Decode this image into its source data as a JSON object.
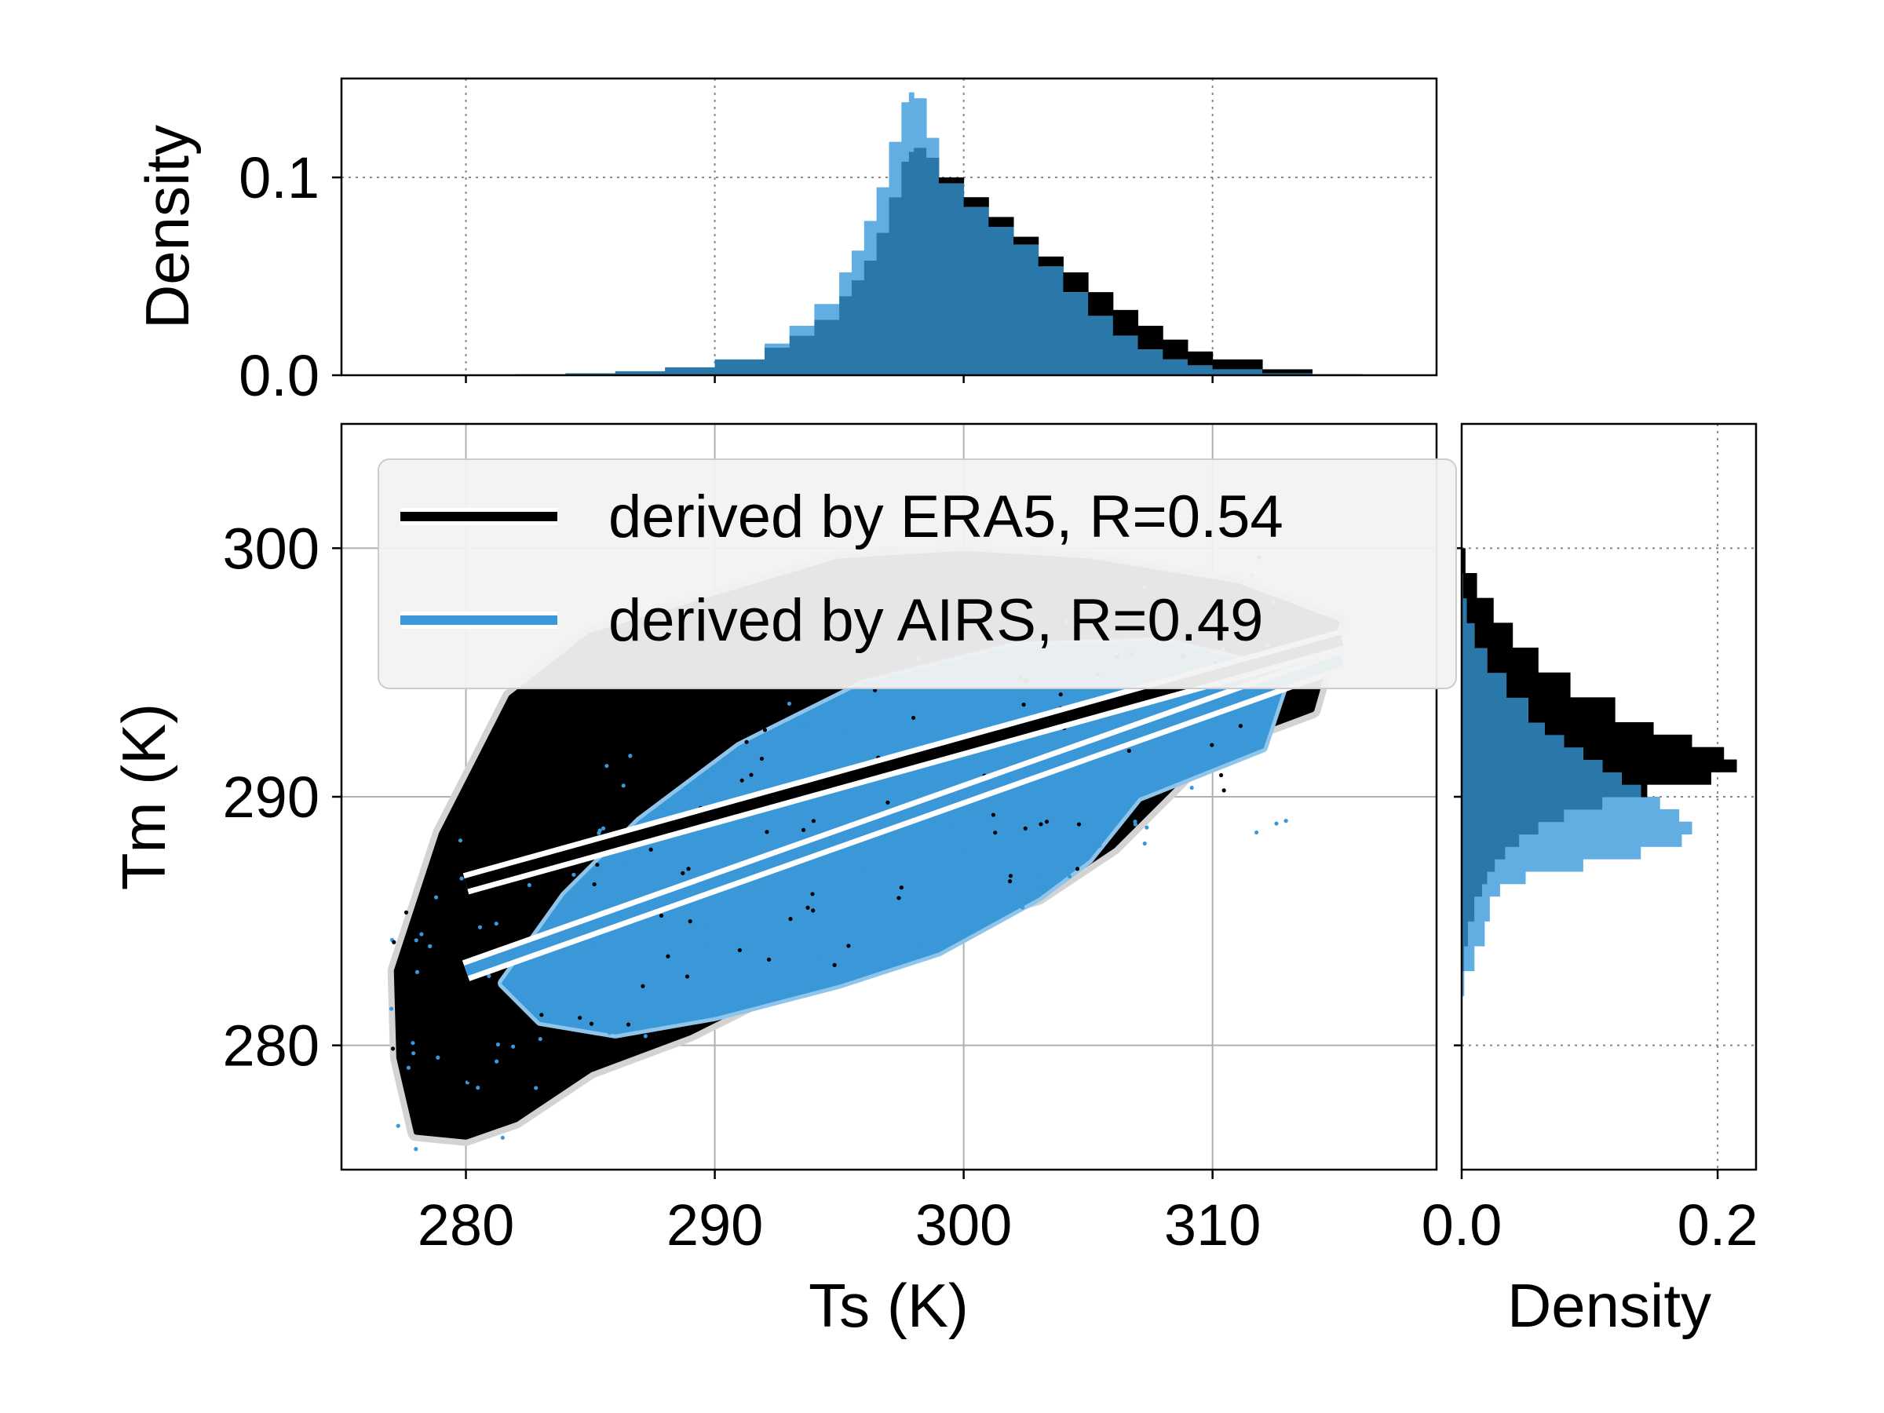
{
  "chart_data": [
    {
      "id": "scatter_main",
      "type": "scatter",
      "xlabel": "Ts (K)",
      "ylabel": "Tm (K)",
      "xlim": [
        275,
        319
      ],
      "ylim": [
        275,
        305
      ],
      "xticks": [
        280,
        290,
        300,
        310
      ],
      "yticks": [
        280,
        290,
        300
      ],
      "grid": "solid",
      "legend_position": "upper-left",
      "series": [
        {
          "name": "derived by ERA5, R=0.54",
          "color": "#000000",
          "cloud_color": "#000000",
          "halo_color": "#d3d3d3",
          "fit_line": {
            "x": [
              280,
              315.2
            ],
            "y": [
              286.5,
              296.3
            ]
          },
          "cloud_outline": [
            [
              277.2,
              283
            ],
            [
              279,
              288.5
            ],
            [
              281.8,
              294
            ],
            [
              285,
              296.5
            ],
            [
              290,
              298
            ],
            [
              295,
              299.5
            ],
            [
              300,
              299.8
            ],
            [
              305,
              299.5
            ],
            [
              311,
              298.5
            ],
            [
              315,
              297
            ],
            [
              314,
              293.5
            ],
            [
              310,
              292
            ],
            [
              306,
              288
            ],
            [
              303,
              286
            ],
            [
              298,
              284.5
            ],
            [
              294,
              283
            ],
            [
              289,
              280.5
            ],
            [
              285,
              279
            ],
            [
              282,
              277
            ],
            [
              280,
              276.3
            ],
            [
              278,
              276.5
            ],
            [
              277.3,
              279.5
            ]
          ]
        },
        {
          "name": "derived by AIRS, R=0.49",
          "color": "#3a98d8",
          "cloud_color": "#3a98d8",
          "fit_line": {
            "x": [
              280,
              315.2
            ],
            "y": [
              283,
              295.5
            ]
          },
          "cloud_outline": [
            [
              281.5,
              282.5
            ],
            [
              284,
              286
            ],
            [
              287,
              289
            ],
            [
              291,
              292
            ],
            [
              296,
              294.5
            ],
            [
              302,
              296
            ],
            [
              308,
              296.2
            ],
            [
              313,
              295
            ],
            [
              312,
              292
            ],
            [
              307,
              290
            ],
            [
              305,
              287.5
            ],
            [
              303,
              286
            ],
            [
              299,
              283.8
            ],
            [
              295,
              282.5
            ],
            [
              290,
              281.2
            ],
            [
              286,
              280.5
            ],
            [
              283,
              281
            ]
          ]
        }
      ]
    },
    {
      "id": "histogram_top",
      "type": "bar",
      "ylabel": "Density",
      "xlim": [
        275,
        319
      ],
      "ylim": [
        0,
        0.15
      ],
      "yticks": [
        0.0,
        0.1
      ],
      "ytick_labels": [
        "0.0",
        "0.1"
      ],
      "grid": "dotted",
      "x": [
        280,
        282,
        284,
        286,
        288,
        290,
        292,
        293,
        294,
        295,
        295.5,
        296,
        296.5,
        297,
        297.5,
        297.8,
        298,
        298.5,
        299,
        300,
        301,
        302,
        303,
        304,
        305,
        306,
        307,
        308,
        309,
        310,
        312,
        314
      ],
      "series": [
        {
          "name": "ERA5",
          "color": "#000000",
          "values": [
            0.0,
            0.0005,
            0.001,
            0.002,
            0.004,
            0.008,
            0.014,
            0.02,
            0.028,
            0.04,
            0.048,
            0.058,
            0.072,
            0.09,
            0.108,
            0.113,
            0.115,
            0.11,
            0.1,
            0.09,
            0.08,
            0.07,
            0.06,
            0.052,
            0.042,
            0.033,
            0.025,
            0.018,
            0.012,
            0.008,
            0.003,
            0.0005
          ]
        },
        {
          "name": "AIRS",
          "color": "#62aee3",
          "overlap_color": "#2a77aa",
          "values": [
            0.0,
            0.0005,
            0.001,
            0.002,
            0.004,
            0.008,
            0.016,
            0.025,
            0.036,
            0.052,
            0.063,
            0.078,
            0.095,
            0.118,
            0.138,
            0.143,
            0.14,
            0.12,
            0.097,
            0.085,
            0.075,
            0.066,
            0.055,
            0.042,
            0.03,
            0.02,
            0.013,
            0.008,
            0.005,
            0.003,
            0.001,
            0.0002
          ]
        }
      ]
    },
    {
      "id": "histogram_right",
      "type": "bar",
      "xlabel": "Density",
      "xlim": [
        0,
        0.23
      ],
      "xticks": [
        0.0,
        0.2
      ],
      "xtick_labels": [
        "0.0",
        "0.2"
      ],
      "ylim": [
        275,
        305
      ],
      "grid": "dotted",
      "y": [
        282,
        283,
        284,
        285,
        286,
        286.5,
        287,
        287.5,
        288,
        288.5,
        289,
        289.5,
        290,
        290.5,
        291,
        291.5,
        292,
        292.5,
        293,
        294,
        295,
        296,
        297,
        298,
        299
      ],
      "series": [
        {
          "name": "ERA5",
          "color": "#000000",
          "values": [
            0.0,
            0.002,
            0.005,
            0.01,
            0.016,
            0.02,
            0.026,
            0.034,
            0.045,
            0.06,
            0.08,
            0.11,
            0.145,
            0.195,
            0.215,
            0.205,
            0.18,
            0.15,
            0.12,
            0.085,
            0.06,
            0.04,
            0.025,
            0.012,
            0.003
          ]
        },
        {
          "name": "AIRS",
          "color": "#62aee3",
          "overlap_color": "#2a77aa",
          "values": [
            0.002,
            0.01,
            0.018,
            0.022,
            0.03,
            0.05,
            0.095,
            0.14,
            0.172,
            0.18,
            0.17,
            0.155,
            0.14,
            0.125,
            0.11,
            0.095,
            0.08,
            0.065,
            0.052,
            0.035,
            0.02,
            0.01,
            0.004,
            0.001,
            0.0
          ]
        }
      ]
    }
  ]
}
